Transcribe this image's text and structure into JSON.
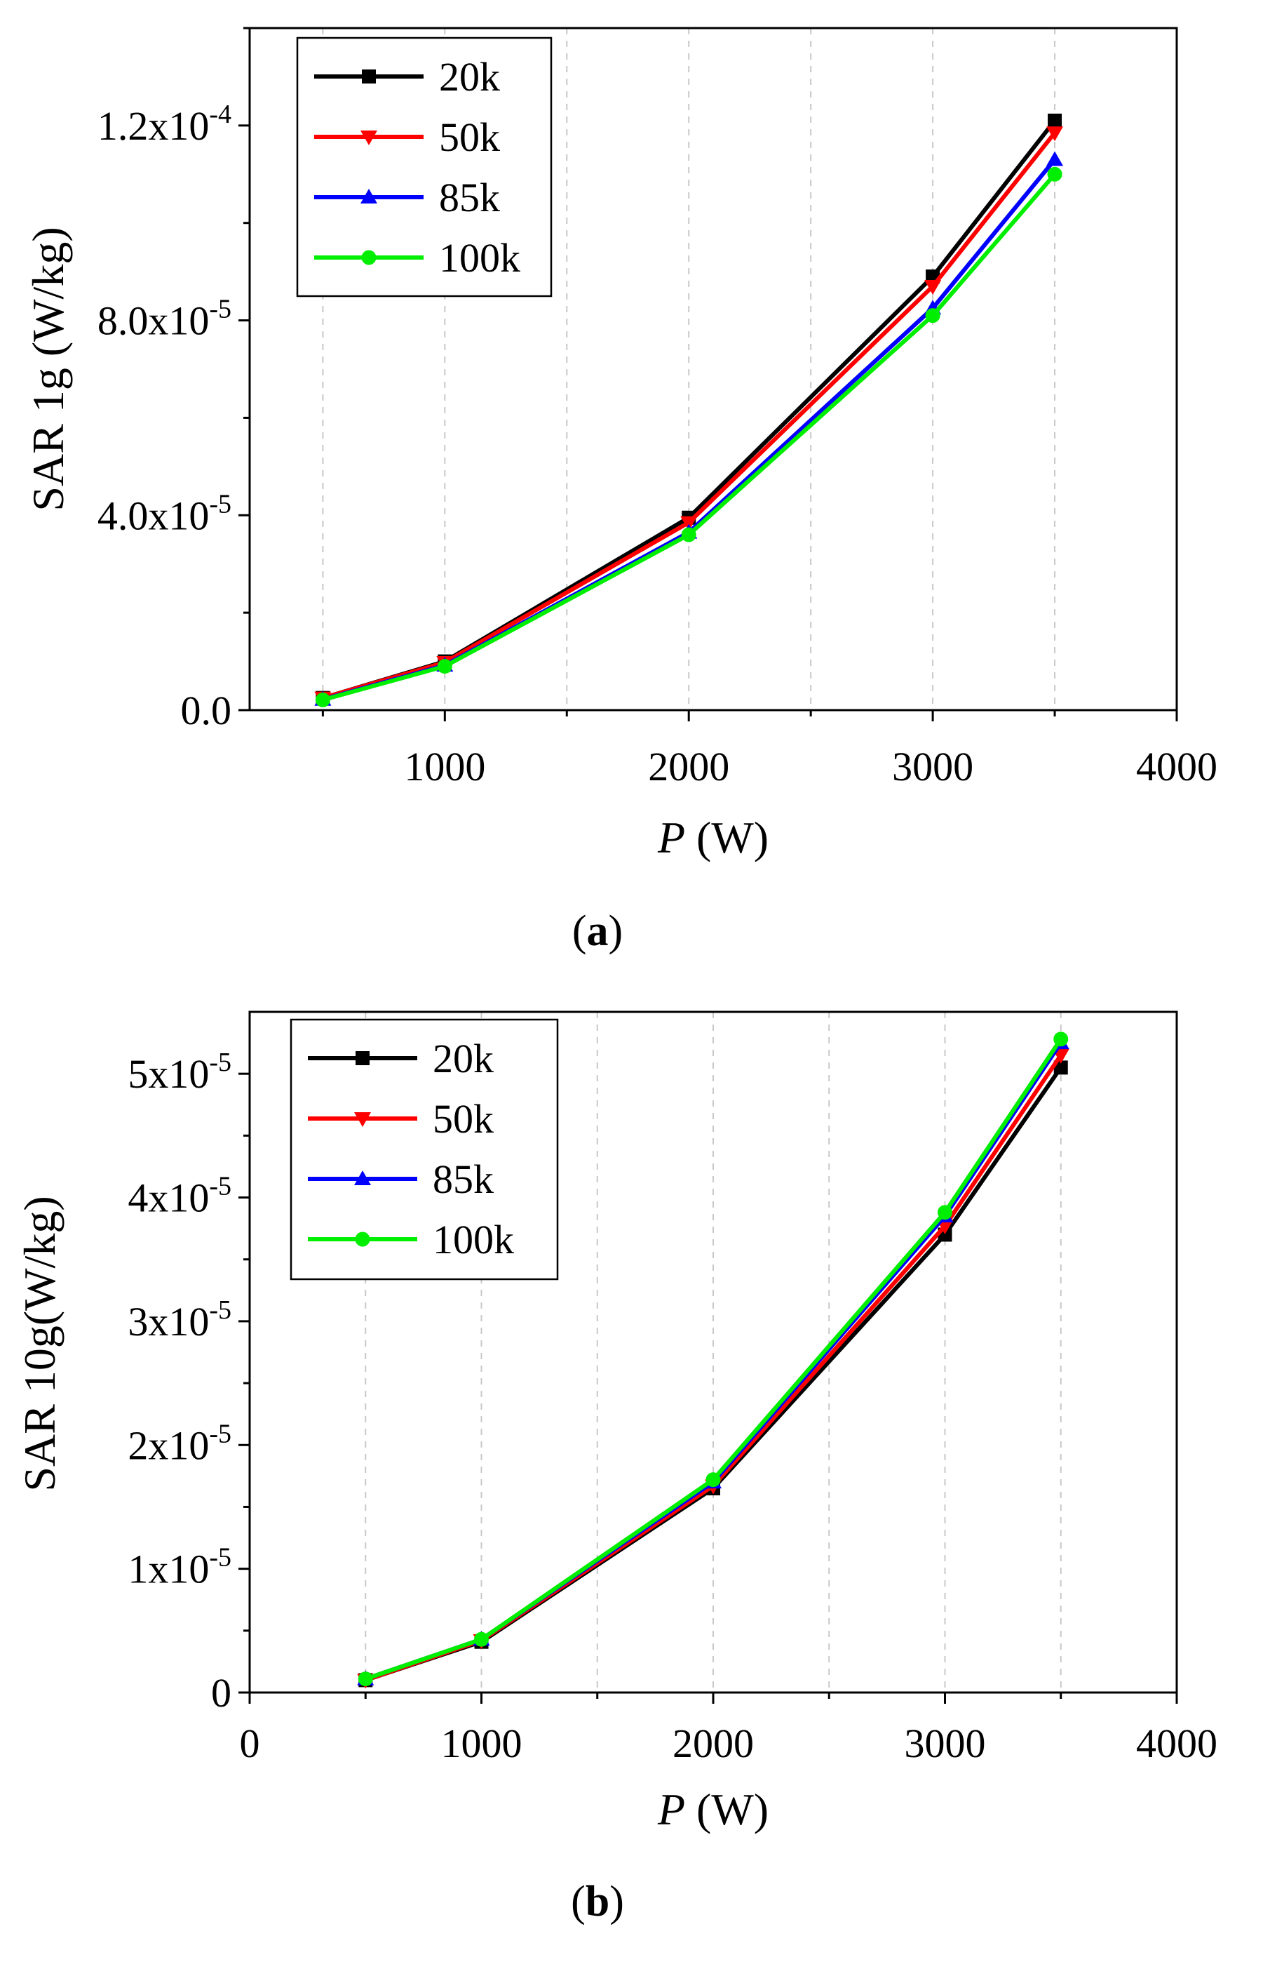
{
  "chart_data": [
    {
      "id": "a",
      "type": "line",
      "caption": "a",
      "xlabel": {
        "var": "P",
        "unit": "(W)"
      },
      "ylabel": "SAR 1g (W/kg)",
      "xlim": [
        200,
        4000
      ],
      "ylim": [
        0,
        0.00014
      ],
      "grid": "vertical-dashed",
      "legend_position": "top-left",
      "x_ticks": [
        {
          "value": 1000,
          "label": "1000"
        },
        {
          "value": 2000,
          "label": "2000"
        },
        {
          "value": 3000,
          "label": "3000"
        },
        {
          "value": 4000,
          "label": "4000"
        }
      ],
      "x_minor": [
        500,
        1500,
        2500,
        3500
      ],
      "y_ticks": [
        {
          "value": 0,
          "base": "0.0",
          "exp": ""
        },
        {
          "value": 4e-05,
          "base": "4.0x10",
          "exp": "-5"
        },
        {
          "value": 8e-05,
          "base": "8.0x10",
          "exp": "-5"
        },
        {
          "value": 0.00012,
          "base": "1.2x10",
          "exp": "-4"
        }
      ],
      "y_minor": [
        2e-05,
        6e-05,
        0.0001,
        0.00014
      ],
      "x": [
        500,
        1000,
        2000,
        3000,
        3500
      ],
      "series": [
        {
          "name": "20k",
          "color": "#000000",
          "marker": "square",
          "values": [
            2.5e-06,
            1e-05,
            3.95e-05,
            8.9e-05,
            0.000121
          ]
        },
        {
          "name": "50k",
          "color": "#ff0000",
          "marker": "triangle-down",
          "values": [
            2.5e-06,
            9.8e-06,
            3.85e-05,
            8.7e-05,
            0.0001185
          ]
        },
        {
          "name": "85k",
          "color": "#0000ff",
          "marker": "triangle-up",
          "values": [
            2.2e-06,
            9.2e-06,
            3.65e-05,
            8.25e-05,
            0.000113
          ]
        },
        {
          "name": "100k",
          "color": "#00ee00",
          "marker": "circle",
          "values": [
            2.1e-06,
            9e-06,
            3.6e-05,
            8.1e-05,
            0.00011
          ]
        }
      ]
    },
    {
      "id": "b",
      "type": "line",
      "caption": "b",
      "xlabel": {
        "var": "P",
        "unit": "(W)"
      },
      "ylabel": "SAR 10g(W/kg)",
      "xlim": [
        0,
        4000
      ],
      "ylim": [
        0,
        5.5e-05
      ],
      "grid": "vertical-dashed",
      "legend_position": "top-left",
      "x_ticks": [
        {
          "value": 0,
          "label": "0"
        },
        {
          "value": 1000,
          "label": "1000"
        },
        {
          "value": 2000,
          "label": "2000"
        },
        {
          "value": 3000,
          "label": "3000"
        },
        {
          "value": 4000,
          "label": "4000"
        }
      ],
      "x_minor": [
        500,
        1500,
        2500,
        3500
      ],
      "y_ticks": [
        {
          "value": 0,
          "base": "0",
          "exp": ""
        },
        {
          "value": 1e-05,
          "base": "1x10",
          "exp": "-5"
        },
        {
          "value": 2e-05,
          "base": "2x10",
          "exp": "-5"
        },
        {
          "value": 3e-05,
          "base": "3x10",
          "exp": "-5"
        },
        {
          "value": 4e-05,
          "base": "4x10",
          "exp": "-5"
        },
        {
          "value": 5e-05,
          "base": "5x10",
          "exp": "-5"
        }
      ],
      "y_minor": [
        5e-06,
        1.5e-05,
        2.5e-05,
        3.5e-05,
        4.5e-05
      ],
      "x": [
        500,
        1000,
        2000,
        3000,
        3500
      ],
      "series": [
        {
          "name": "20k",
          "color": "#000000",
          "marker": "square",
          "values": [
            1e-06,
            4.1e-06,
            1.65e-05,
            3.7e-05,
            5.05e-05
          ]
        },
        {
          "name": "50k",
          "color": "#ff0000",
          "marker": "triangle-down",
          "values": [
            1e-06,
            4.2e-06,
            1.67e-05,
            3.77e-05,
            5.15e-05
          ]
        },
        {
          "name": "85k",
          "color": "#0000ff",
          "marker": "triangle-up",
          "values": [
            1.1e-06,
            4.3e-06,
            1.7e-05,
            3.85e-05,
            5.25e-05
          ]
        },
        {
          "name": "100k",
          "color": "#00ee00",
          "marker": "circle",
          "values": [
            1.1e-06,
            4.3e-06,
            1.72e-05,
            3.88e-05,
            5.28e-05
          ]
        }
      ]
    }
  ]
}
